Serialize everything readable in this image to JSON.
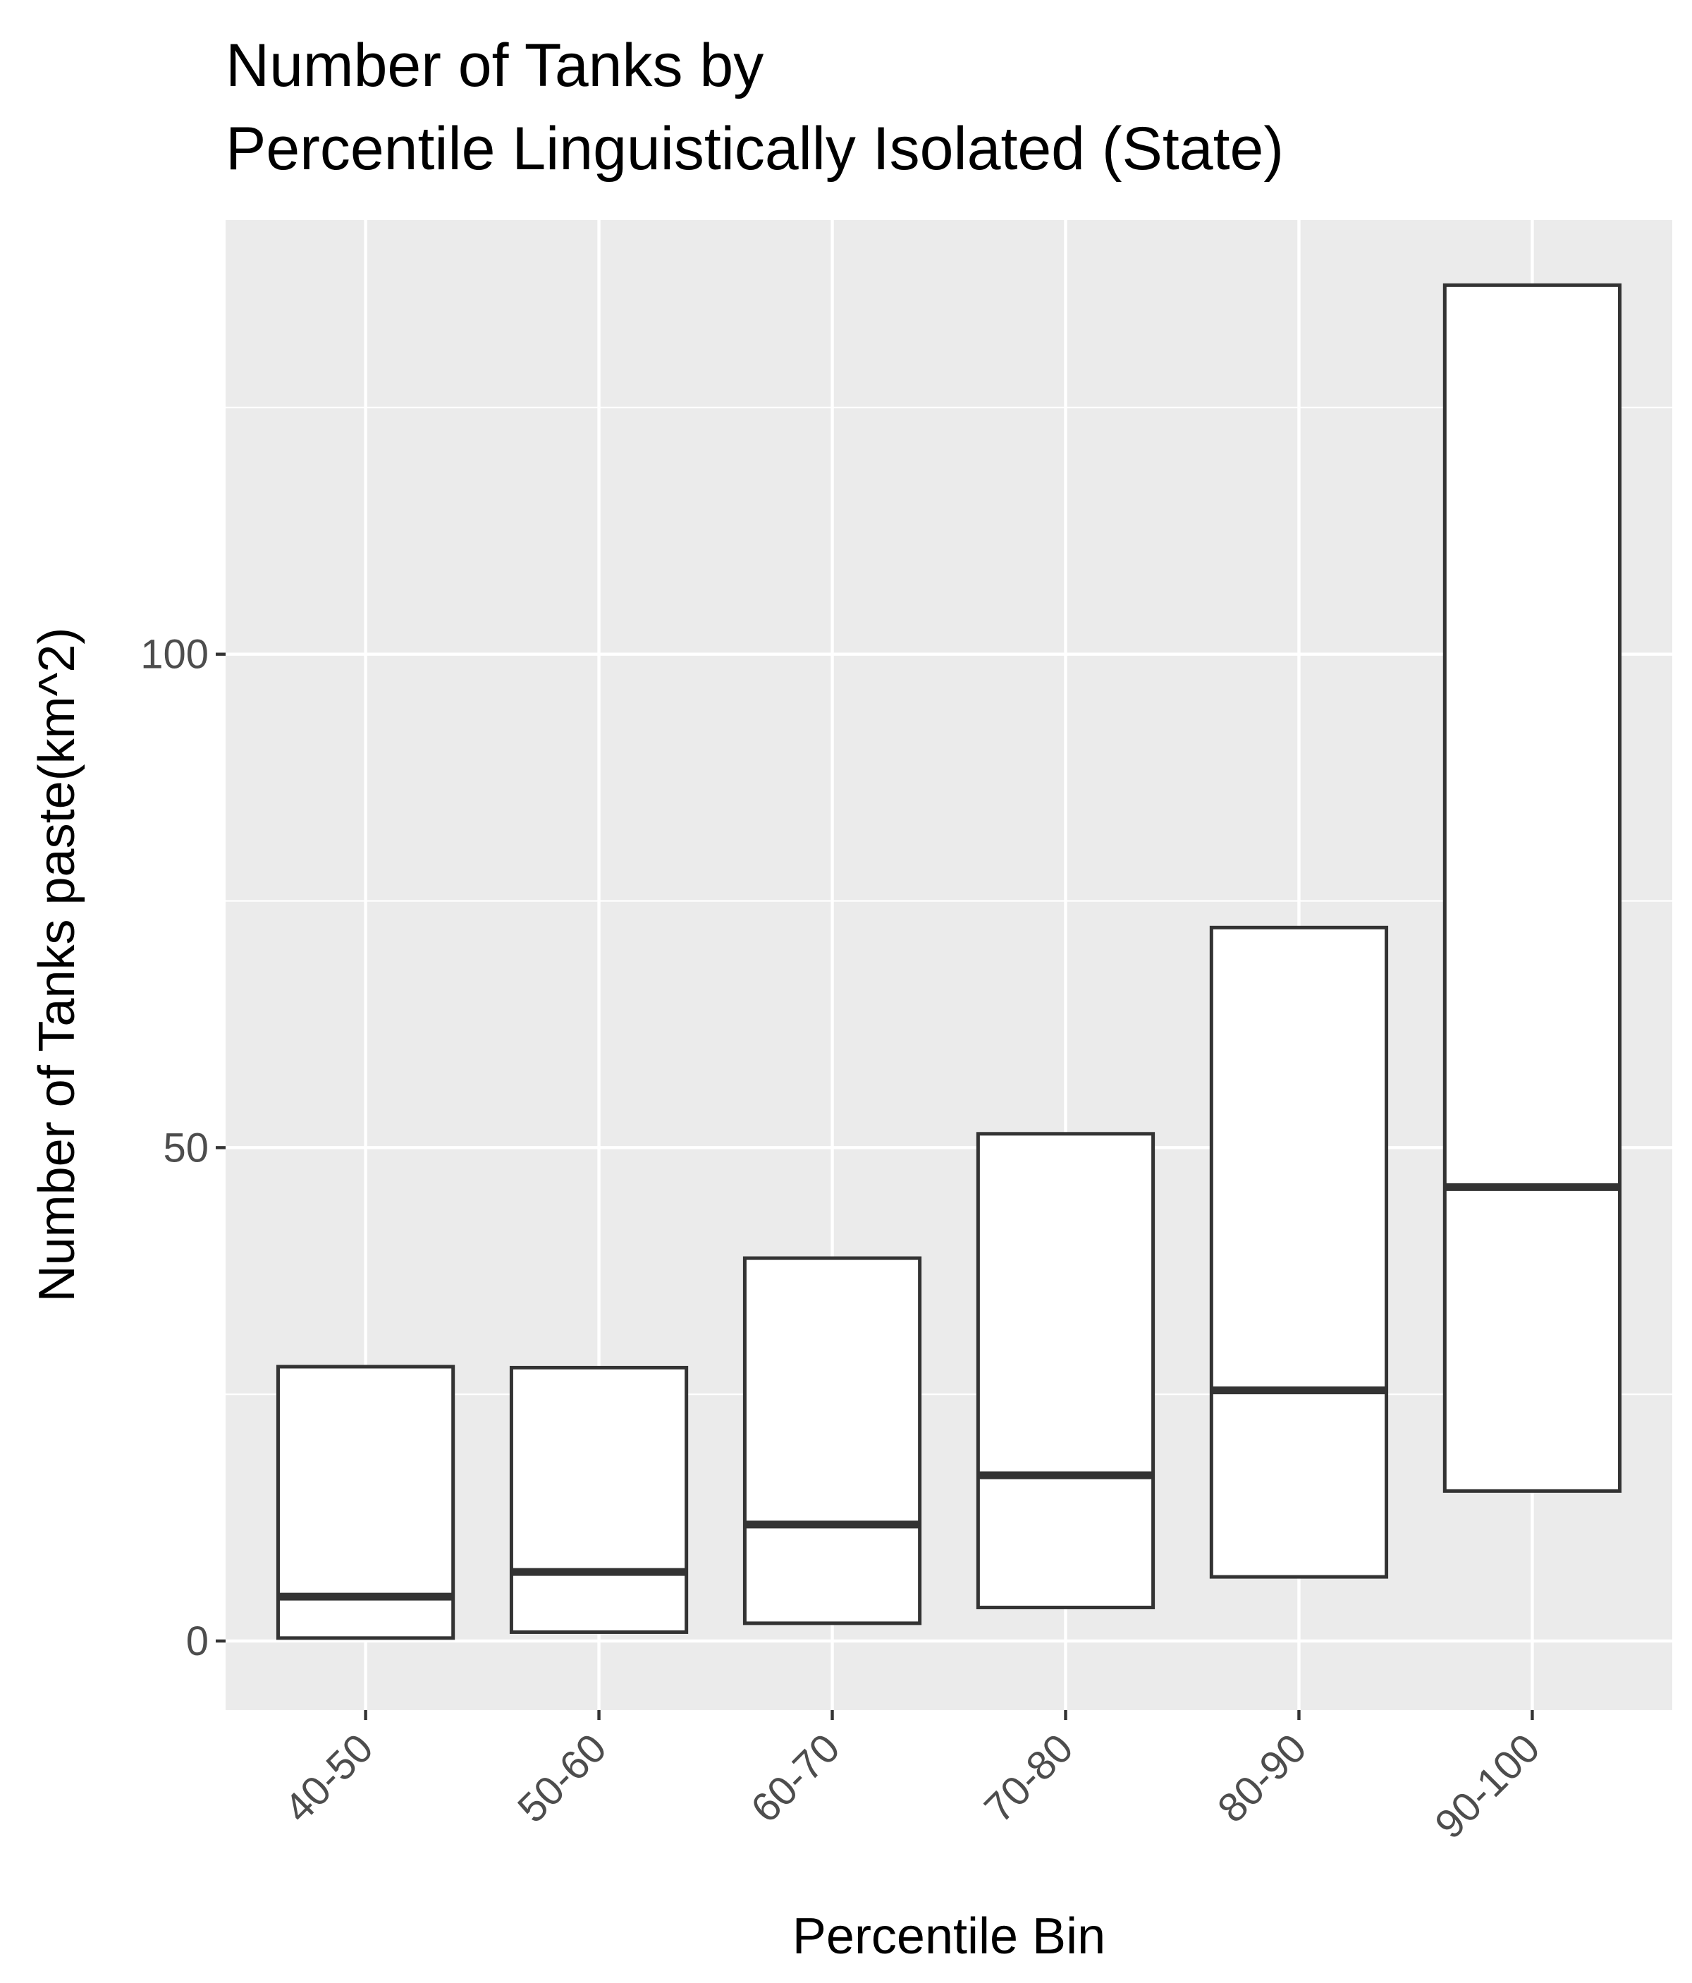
{
  "chart_data": {
    "type": "box",
    "title_lines": [
      "Number of Tanks by",
      "Percentile Linguistically Isolated (State)"
    ],
    "xlabel": "Percentile Bin",
    "ylabel": "Number of Tanks paste(km^2)",
    "categories": [
      "40-50",
      "50-60",
      "60-70",
      "70-80",
      "80-90",
      "90-100"
    ],
    "boxes": [
      {
        "category": "40-50",
        "lower": 0.3,
        "median": 4.5,
        "upper": 27.8
      },
      {
        "category": "50-60",
        "lower": 0.9,
        "median": 7.0,
        "upper": 27.7
      },
      {
        "category": "60-70",
        "lower": 1.8,
        "median": 11.8,
        "upper": 38.8
      },
      {
        "category": "70-80",
        "lower": 3.4,
        "median": 16.8,
        "upper": 51.4
      },
      {
        "category": "80-90",
        "lower": 6.5,
        "median": 25.4,
        "upper": 72.3
      },
      {
        "category": "90-100",
        "lower": 15.2,
        "median": 46.0,
        "upper": 137.4
      }
    ],
    "y_ticks": [
      0,
      50,
      100
    ],
    "y_tick_labels": [
      "0",
      "50",
      "100"
    ],
    "y_minor_grid": [
      25,
      75,
      125
    ],
    "ylim": [
      -7,
      144
    ],
    "grid": true,
    "legend": "none"
  },
  "colors": {
    "panel_background": "#ebebeb",
    "grid": "#ffffff",
    "box_fill": "#ffffff",
    "box_outline": "#333333",
    "tick_label": "#4d4d4d",
    "tick_mark": "#333333",
    "text": "#000000"
  }
}
